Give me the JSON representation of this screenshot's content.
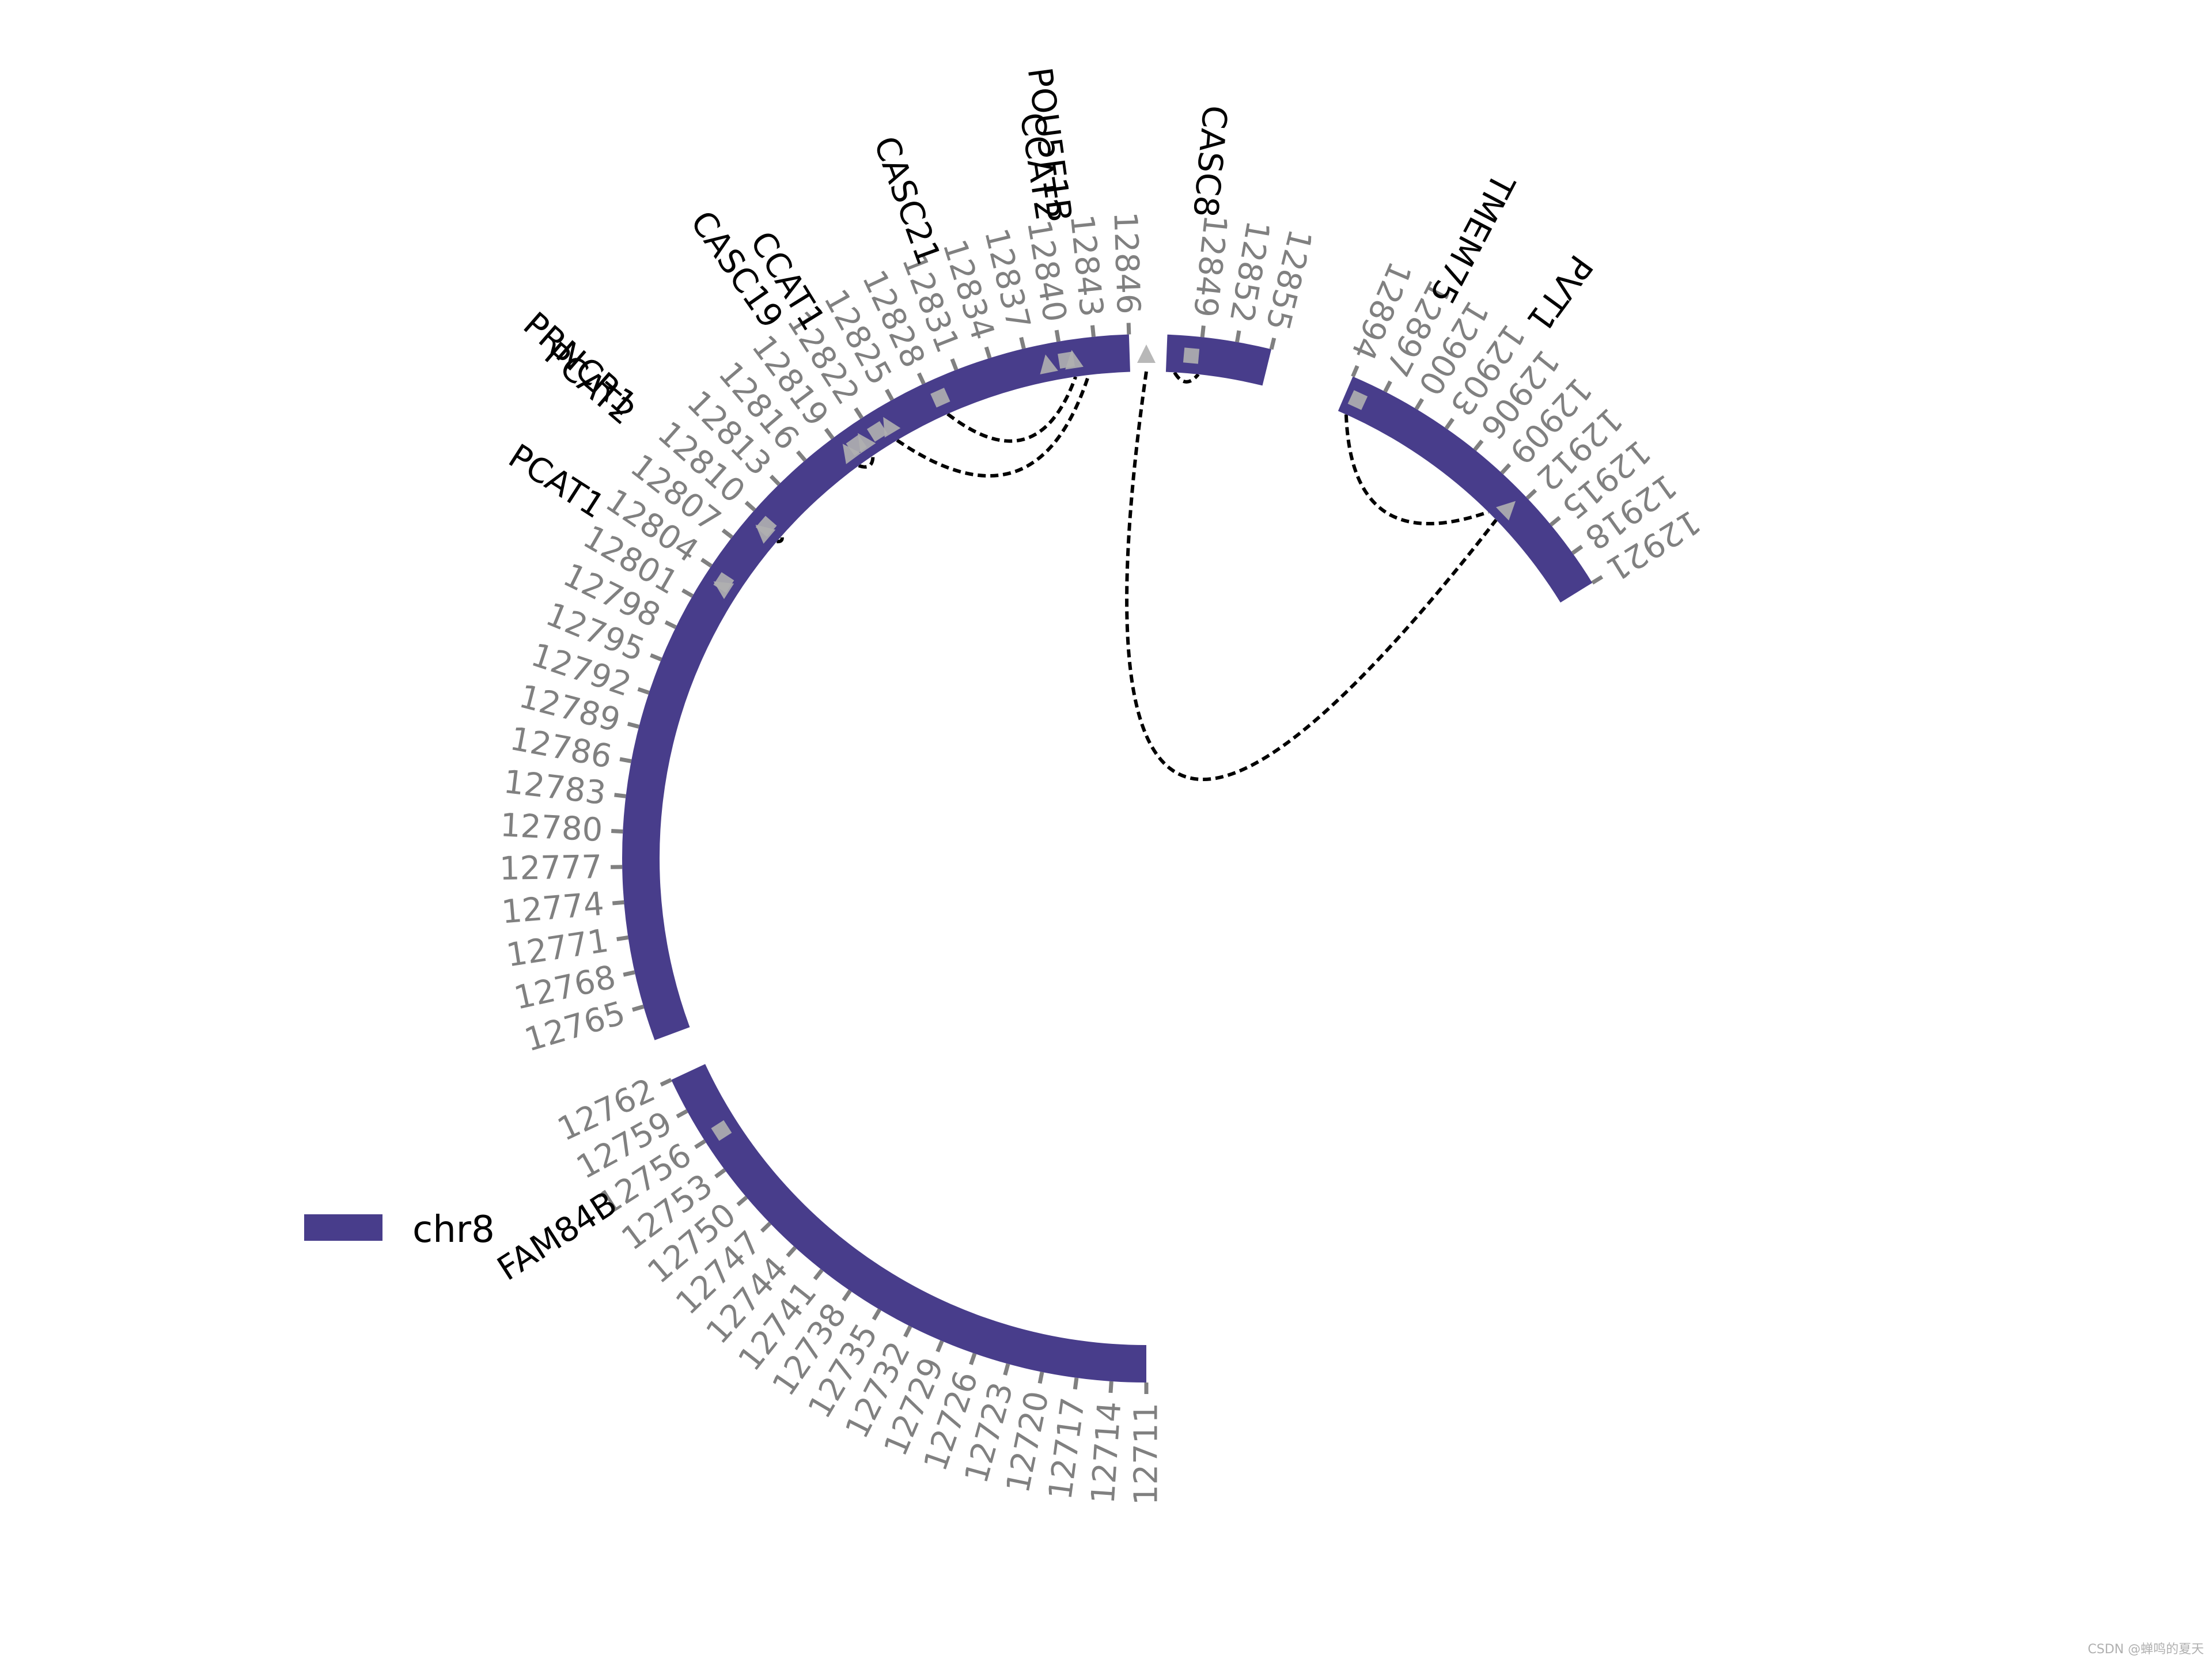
{
  "chart_data": {
    "type": "circos",
    "colors": {
      "track": "#483D8B",
      "tick": "#808080",
      "marker": "#B0B0B0",
      "link": "#000000"
    },
    "chromosome": "chr8",
    "segments": [
      {
        "start": 12711,
        "end": 12762
      },
      {
        "start": 12762,
        "end": 12846
      },
      {
        "start": 12846,
        "end": 12855
      },
      {
        "start": 12894,
        "end": 12921
      }
    ],
    "ticks": {
      "s1": [
        "12711",
        "12714",
        "12717",
        "12720",
        "12723",
        "12726",
        "12729",
        "12732",
        "12735",
        "12738",
        "12741",
        "12744",
        "12747",
        "12750",
        "12753",
        "12756",
        "12759",
        "12762"
      ],
      "s2": [
        "12765",
        "12768",
        "12771",
        "12774",
        "12777",
        "12780",
        "12783",
        "12786",
        "12789",
        "12792",
        "12795",
        "12798",
        "12801",
        "12804",
        "12807",
        "12810",
        "12813",
        "12816",
        "12819",
        "12822",
        "12825",
        "12828",
        "12831",
        "12834",
        "12837",
        "12840",
        "12843",
        "12846"
      ],
      "s3": [
        "12849",
        "12852",
        "12855"
      ],
      "s4": [
        "12894",
        "12897",
        "12900",
        "12903",
        "12906",
        "12909",
        "12912",
        "12915",
        "12918",
        "12921"
      ]
    },
    "genes": [
      {
        "name": "FAM84B",
        "position": 12756
      },
      {
        "name": "PCAT1",
        "position": 12803
      },
      {
        "name": "PRNCR1",
        "position": 12809.6
      },
      {
        "name": "PCAT2",
        "position": 12809.1
      },
      {
        "name": "CASC19",
        "position": 12820.5
      },
      {
        "name": "CCAT1",
        "position": 12822.8
      },
      {
        "name": "CASC21",
        "position": 12832
      },
      {
        "name": "CCAT2",
        "position": 12840.7
      },
      {
        "name": "POU5F1B",
        "position": 12841.5
      },
      {
        "name": "CASC8",
        "position": 12848.3
      },
      {
        "name": "TMEM75",
        "position": 12897.5
      },
      {
        "name": "PVT1",
        "position": 12904
      }
    ],
    "markers": [
      12756,
      12803,
      12803.4,
      12809.1,
      12809.6,
      12819.4,
      12820.3,
      12821,
      12822.5,
      12823.6,
      12828.8,
      12838.7,
      12840.4,
      12841,
      12848.2,
      12893.8,
      12895.2,
      12911.5
    ],
    "links": [
      {
        "from": 12809.2,
        "to": 12809.9
      },
      {
        "from": 12819.4,
        "to": 12821
      },
      {
        "from": 12823.6,
        "to": 12842.2
      },
      {
        "from": 12828.8,
        "to": 12841
      },
      {
        "from": 12846.8,
        "to": 12849
      },
      {
        "from": 12893.5,
        "to": 12911.5
      },
      {
        "from": 12894.8,
        "to": 12910.5
      }
    ],
    "legend": {
      "label": "chr8",
      "position": "left"
    }
  },
  "watermark": "CSDN @蝉鸣的夏天"
}
